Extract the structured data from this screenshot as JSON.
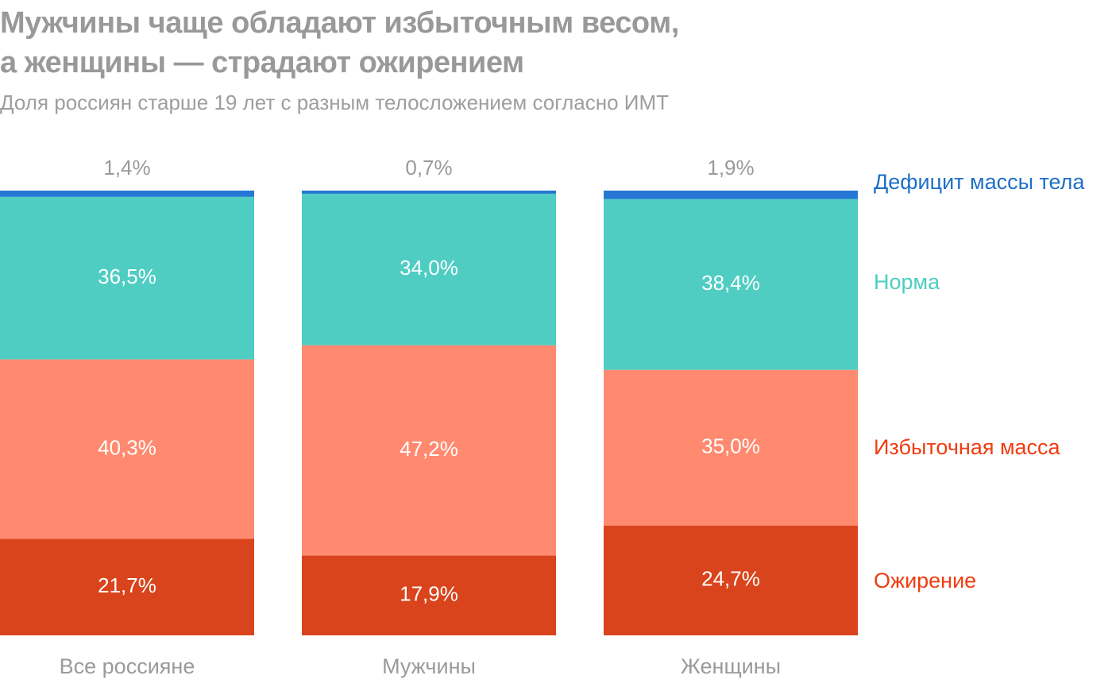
{
  "chart_data": {
    "type": "bar",
    "stacked": true,
    "normalized": true,
    "title": "Мужчины чаще обладают избыточным весом, а женщины — страдают ожирением",
    "title_lines": [
      "Мужчины чаще обладают избыточным весом,",
      "а женщины — страдают ожирением"
    ],
    "subtitle": "Доля россиян старше 19 лет с разным телосложением согласно ИМТ",
    "xlabel": "",
    "ylabel": "",
    "ylim": [
      0,
      100
    ],
    "grid": false,
    "legend_position": "right",
    "categories": [
      "Все россияне",
      "Мужчины",
      "Женщины"
    ],
    "series": [
      {
        "name": "Дефицит массы тела",
        "color": "#2577d3",
        "label_color": "#1f6fc6",
        "values": [
          1.4,
          0.7,
          1.9
        ],
        "labels": [
          "1,4%",
          "0,7%",
          "1,9%"
        ],
        "label_placement": "above"
      },
      {
        "name": "Норма",
        "color": "#4fcdc3",
        "label_color": "#4fcdc3",
        "values": [
          36.5,
          34.0,
          38.4
        ],
        "labels": [
          "36,5%",
          "34,0%",
          "38,4%"
        ],
        "label_placement": "inside"
      },
      {
        "name": "Избыточная масса",
        "color": "#ff8a70",
        "label_color": "#f03c10",
        "values": [
          40.3,
          47.2,
          35.0
        ],
        "labels": [
          "40,3%",
          "47,2%",
          "35,0%"
        ],
        "label_placement": "inside"
      },
      {
        "name": "Ожирение",
        "color": "#d9441c",
        "label_color": "#f03c10",
        "values": [
          21.7,
          17.9,
          24.7
        ],
        "labels": [
          "21,7%",
          "17,9%",
          "24,7%"
        ],
        "label_placement": "inside"
      }
    ]
  }
}
